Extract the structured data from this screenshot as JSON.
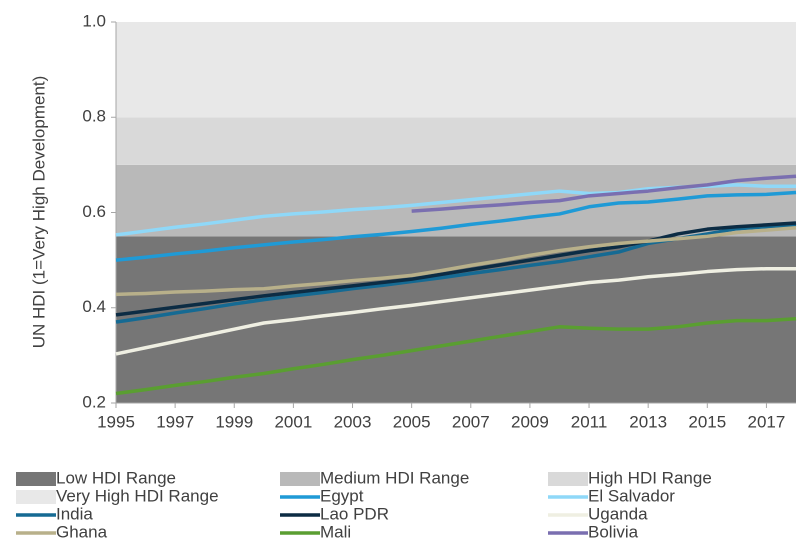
{
  "chart_data": {
    "type": "line",
    "y_label": "UN HDI (1=Very High Development)",
    "x": [
      1995,
      1996,
      1997,
      1998,
      1999,
      2000,
      2001,
      2002,
      2003,
      2004,
      2005,
      2006,
      2007,
      2008,
      2009,
      2010,
      2011,
      2012,
      2013,
      2014,
      2015,
      2016,
      2017,
      2018
    ],
    "xlim": [
      1995,
      2018
    ],
    "xticks": [
      1995,
      1997,
      1999,
      2001,
      2003,
      2005,
      2007,
      2009,
      2011,
      2013,
      2015,
      2017
    ],
    "ylim": [
      0.2,
      1
    ],
    "yticks": [
      0.2,
      0.4,
      0.6,
      0.8,
      {
        "value": 1,
        "label": "1.0"
      }
    ],
    "bands": [
      {
        "name": "Low HDI Range",
        "color": "#767676",
        "range": [
          0.2,
          0.55
        ]
      },
      {
        "name": "Medium HDI Range",
        "color": "#b9b9b9",
        "range": [
          0.55,
          0.7
        ]
      },
      {
        "name": "High HDI Range",
        "color": "#d9d9d9",
        "range": [
          0.7,
          0.8
        ]
      },
      {
        "name": "Very High HDI Range",
        "color": "#e8e8e8",
        "range": [
          0.8,
          1
        ]
      }
    ],
    "series": [
      {
        "name": "Egypt",
        "color": "#1f9ad6",
        "values": [
          0.5,
          0.506,
          0.513,
          0.519,
          0.526,
          0.532,
          0.538,
          0.543,
          0.549,
          0.554,
          0.56,
          0.567,
          0.575,
          0.582,
          0.59,
          0.597,
          0.612,
          0.62,
          0.622,
          0.628,
          0.635,
          0.637,
          0.638,
          0.642
        ]
      },
      {
        "name": "El Salvador",
        "color": "#8fd8f8",
        "values": [
          0.553,
          0.561,
          0.569,
          0.576,
          0.584,
          0.592,
          0.597,
          0.601,
          0.606,
          0.61,
          0.615,
          0.621,
          0.627,
          0.633,
          0.639,
          0.645,
          0.64,
          0.642,
          0.65,
          0.653,
          0.655,
          0.658,
          0.655,
          0.655
        ]
      },
      {
        "name": "India",
        "color": "#156a93",
        "values": [
          0.37,
          0.379,
          0.389,
          0.398,
          0.408,
          0.417,
          0.425,
          0.432,
          0.44,
          0.447,
          0.455,
          0.463,
          0.472,
          0.48,
          0.489,
          0.497,
          0.507,
          0.517,
          0.535,
          0.545,
          0.555,
          0.566,
          0.57,
          0.574
        ]
      },
      {
        "name": "Lao PDR",
        "color": "#0c2c44",
        "values": [
          0.385,
          0.393,
          0.401,
          0.409,
          0.417,
          0.425,
          0.432,
          0.439,
          0.446,
          0.453,
          0.46,
          0.47,
          0.48,
          0.49,
          0.5,
          0.51,
          0.52,
          0.528,
          0.54,
          0.555,
          0.565,
          0.57,
          0.574,
          0.578
        ]
      },
      {
        "name": "Uganda",
        "color": "#efefe2",
        "values": [
          0.303,
          0.316,
          0.329,
          0.342,
          0.355,
          0.368,
          0.375,
          0.383,
          0.39,
          0.398,
          0.405,
          0.413,
          0.421,
          0.429,
          0.437,
          0.445,
          0.453,
          0.458,
          0.465,
          0.47,
          0.476,
          0.48,
          0.482,
          0.482
        ]
      },
      {
        "name": "Ghana",
        "color": "#b8b08a",
        "values": [
          0.428,
          0.43,
          0.433,
          0.435,
          0.438,
          0.44,
          0.446,
          0.451,
          0.457,
          0.462,
          0.468,
          0.478,
          0.489,
          0.499,
          0.51,
          0.52,
          0.528,
          0.535,
          0.54,
          0.545,
          0.55,
          0.558,
          0.563,
          0.568
        ]
      },
      {
        "name": "Mali",
        "color": "#5a9e31",
        "values": [
          0.22,
          0.228,
          0.237,
          0.245,
          0.254,
          0.262,
          0.272,
          0.281,
          0.291,
          0.3,
          0.31,
          0.32,
          0.33,
          0.34,
          0.35,
          0.36,
          0.357,
          0.355,
          0.355,
          0.36,
          0.368,
          0.373,
          0.373,
          0.377
        ]
      },
      {
        "name": "Bolivia",
        "color": "#7a6fb0",
        "values": [
          null,
          null,
          null,
          null,
          null,
          null,
          null,
          null,
          null,
          null,
          0.603,
          0.607,
          0.612,
          0.616,
          0.621,
          0.625,
          0.635,
          0.64,
          0.645,
          0.652,
          0.658,
          0.667,
          0.672,
          0.676
        ]
      }
    ]
  }
}
